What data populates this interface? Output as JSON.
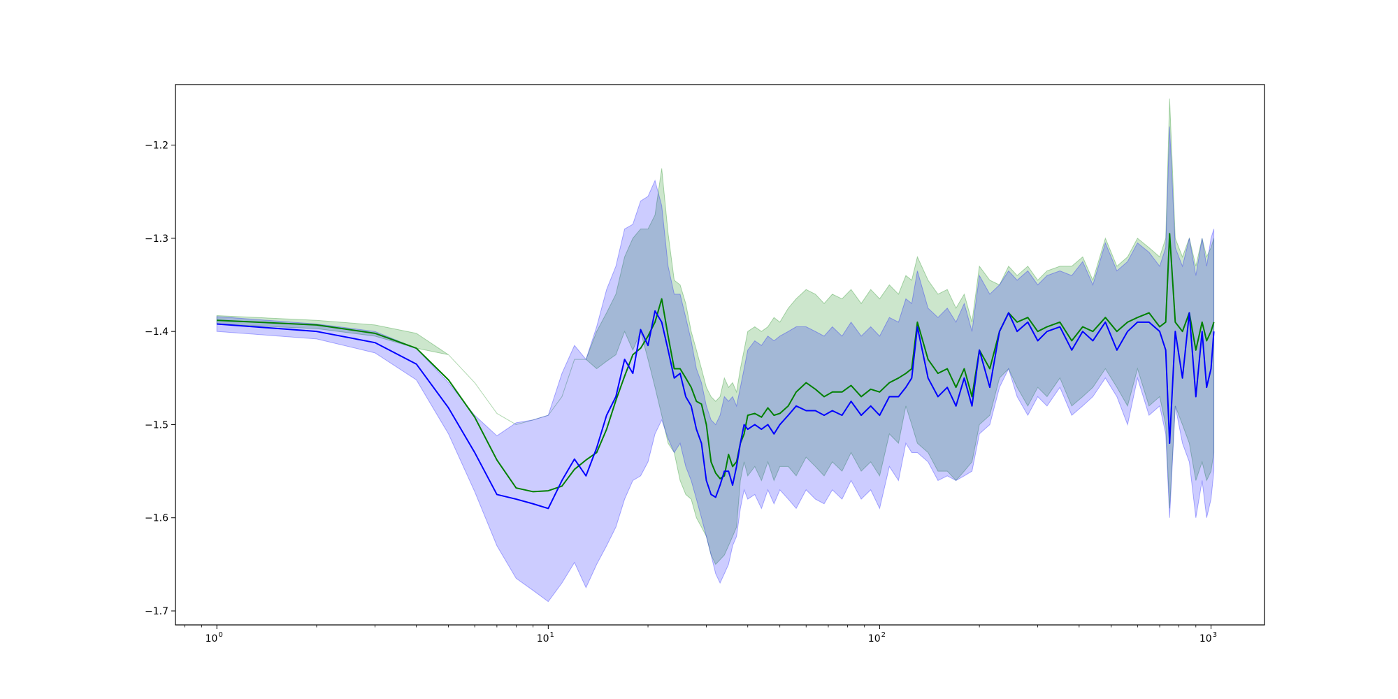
{
  "chart_data": {
    "type": "line",
    "title": "",
    "xlabel": "",
    "ylabel": "",
    "xscale": "log",
    "xlim": [
      0.75,
      1450
    ],
    "ylim": [
      -1.715,
      -1.135
    ],
    "grid": false,
    "legend": "none",
    "x_ticks": [
      {
        "value": 1,
        "base": "10",
        "exp": "0"
      },
      {
        "value": 10,
        "base": "10",
        "exp": "1"
      },
      {
        "value": 100,
        "base": "10",
        "exp": "2"
      },
      {
        "value": 1000,
        "base": "10",
        "exp": "3"
      }
    ],
    "y_ticks": [
      {
        "value": -1.2,
        "label": "−1.2"
      },
      {
        "value": -1.3,
        "label": "−1.3"
      },
      {
        "value": -1.4,
        "label": "−1.4"
      },
      {
        "value": -1.5,
        "label": "−1.5"
      },
      {
        "value": -1.6,
        "label": "−1.6"
      },
      {
        "value": -1.7,
        "label": "−1.7"
      }
    ],
    "series": [
      {
        "color": "#008000",
        "band_color": "#008000",
        "band_opacity": 0.2,
        "line_width": 2,
        "x": [
          1,
          2,
          3,
          4,
          5,
          6,
          7,
          8,
          9,
          10,
          11,
          12,
          13,
          14,
          15,
          16,
          17,
          18,
          19,
          20,
          21,
          22,
          23,
          24,
          25,
          26,
          27,
          28,
          29,
          30,
          31,
          32,
          33,
          34,
          35,
          36,
          37,
          38,
          39,
          40,
          42,
          44,
          46,
          48,
          50,
          53,
          56,
          60,
          64,
          68,
          72,
          77,
          82,
          88,
          94,
          100,
          107,
          114,
          120,
          125,
          130,
          140,
          150,
          160,
          170,
          180,
          190,
          200,
          215,
          230,
          245,
          260,
          280,
          300,
          320,
          350,
          380,
          410,
          440,
          480,
          520,
          560,
          600,
          650,
          700,
          730,
          750,
          780,
          820,
          860,
          900,
          940,
          970,
          1000,
          1020
        ],
        "y": [
          -1.388,
          -1.393,
          -1.402,
          -1.418,
          -1.452,
          -1.492,
          -1.538,
          -1.568,
          -1.572,
          -1.571,
          -1.566,
          -1.548,
          -1.538,
          -1.53,
          -1.505,
          -1.474,
          -1.448,
          -1.425,
          -1.418,
          -1.405,
          -1.39,
          -1.365,
          -1.405,
          -1.44,
          -1.44,
          -1.45,
          -1.46,
          -1.475,
          -1.478,
          -1.5,
          -1.54,
          -1.552,
          -1.558,
          -1.555,
          -1.532,
          -1.545,
          -1.54,
          -1.52,
          -1.51,
          -1.49,
          -1.488,
          -1.492,
          -1.482,
          -1.49,
          -1.488,
          -1.48,
          -1.465,
          -1.455,
          -1.462,
          -1.47,
          -1.465,
          -1.465,
          -1.458,
          -1.47,
          -1.462,
          -1.465,
          -1.455,
          -1.45,
          -1.445,
          -1.44,
          -1.39,
          -1.43,
          -1.445,
          -1.44,
          -1.46,
          -1.44,
          -1.47,
          -1.42,
          -1.44,
          -1.4,
          -1.38,
          -1.39,
          -1.385,
          -1.4,
          -1.395,
          -1.39,
          -1.41,
          -1.395,
          -1.4,
          -1.385,
          -1.4,
          -1.39,
          -1.385,
          -1.38,
          -1.395,
          -1.39,
          -1.295,
          -1.39,
          -1.4,
          -1.38,
          -1.42,
          -1.39,
          -1.41,
          -1.4,
          -1.39
        ],
        "lower": [
          -1.392,
          -1.397,
          -1.405,
          -1.418,
          -1.425,
          -1.455,
          -1.488,
          -1.5,
          -1.495,
          -1.49,
          -1.47,
          -1.43,
          -1.43,
          -1.44,
          -1.432,
          -1.425,
          -1.4,
          -1.42,
          -1.4,
          -1.43,
          -1.46,
          -1.49,
          -1.52,
          -1.53,
          -1.56,
          -1.575,
          -1.58,
          -1.6,
          -1.61,
          -1.62,
          -1.64,
          -1.65,
          -1.645,
          -1.64,
          -1.63,
          -1.62,
          -1.61,
          -1.56,
          -1.54,
          -1.555,
          -1.545,
          -1.56,
          -1.54,
          -1.56,
          -1.545,
          -1.545,
          -1.555,
          -1.535,
          -1.545,
          -1.555,
          -1.54,
          -1.55,
          -1.53,
          -1.55,
          -1.54,
          -1.555,
          -1.51,
          -1.52,
          -1.48,
          -1.5,
          -1.52,
          -1.53,
          -1.55,
          -1.55,
          -1.56,
          -1.55,
          -1.54,
          -1.5,
          -1.49,
          -1.45,
          -1.44,
          -1.46,
          -1.48,
          -1.46,
          -1.47,
          -1.45,
          -1.48,
          -1.47,
          -1.46,
          -1.44,
          -1.46,
          -1.48,
          -1.44,
          -1.48,
          -1.47,
          -1.5,
          -1.59,
          -1.48,
          -1.5,
          -1.52,
          -1.56,
          -1.54,
          -1.56,
          -1.55,
          -1.53
        ],
        "upper": [
          -1.383,
          -1.388,
          -1.393,
          -1.402,
          -1.425,
          -1.455,
          -1.488,
          -1.5,
          -1.495,
          -1.49,
          -1.47,
          -1.43,
          -1.43,
          -1.4,
          -1.38,
          -1.36,
          -1.32,
          -1.3,
          -1.29,
          -1.29,
          -1.275,
          -1.225,
          -1.295,
          -1.345,
          -1.35,
          -1.37,
          -1.4,
          -1.42,
          -1.44,
          -1.46,
          -1.47,
          -1.475,
          -1.47,
          -1.45,
          -1.46,
          -1.455,
          -1.465,
          -1.44,
          -1.42,
          -1.4,
          -1.395,
          -1.4,
          -1.395,
          -1.385,
          -1.39,
          -1.375,
          -1.365,
          -1.355,
          -1.36,
          -1.37,
          -1.36,
          -1.365,
          -1.355,
          -1.37,
          -1.355,
          -1.365,
          -1.35,
          -1.36,
          -1.34,
          -1.345,
          -1.32,
          -1.345,
          -1.36,
          -1.355,
          -1.375,
          -1.36,
          -1.39,
          -1.33,
          -1.345,
          -1.35,
          -1.33,
          -1.34,
          -1.33,
          -1.345,
          -1.335,
          -1.33,
          -1.33,
          -1.32,
          -1.345,
          -1.3,
          -1.33,
          -1.32,
          -1.3,
          -1.31,
          -1.32,
          -1.3,
          -1.15,
          -1.3,
          -1.32,
          -1.3,
          -1.33,
          -1.3,
          -1.32,
          -1.31,
          -1.3
        ]
      },
      {
        "color": "#0000ff",
        "band_color": "#0000ff",
        "band_opacity": 0.2,
        "line_width": 2,
        "x": [
          1,
          2,
          3,
          4,
          5,
          6,
          7,
          8,
          9,
          10,
          11,
          12,
          13,
          14,
          15,
          16,
          17,
          18,
          19,
          20,
          21,
          22,
          23,
          24,
          25,
          26,
          27,
          28,
          29,
          30,
          31,
          32,
          33,
          34,
          35,
          36,
          37,
          38,
          39,
          40,
          42,
          44,
          46,
          48,
          50,
          53,
          56,
          60,
          64,
          68,
          72,
          77,
          82,
          88,
          94,
          100,
          107,
          114,
          120,
          125,
          130,
          140,
          150,
          160,
          170,
          180,
          190,
          200,
          215,
          230,
          245,
          260,
          280,
          300,
          320,
          350,
          380,
          410,
          440,
          480,
          520,
          560,
          600,
          650,
          700,
          730,
          750,
          780,
          820,
          860,
          900,
          940,
          970,
          1000,
          1020
        ],
        "y": [
          -1.392,
          -1.4,
          -1.412,
          -1.435,
          -1.482,
          -1.53,
          -1.575,
          -1.58,
          -1.585,
          -1.59,
          -1.56,
          -1.537,
          -1.555,
          -1.525,
          -1.49,
          -1.47,
          -1.43,
          -1.445,
          -1.398,
          -1.415,
          -1.378,
          -1.39,
          -1.42,
          -1.45,
          -1.445,
          -1.47,
          -1.48,
          -1.505,
          -1.52,
          -1.56,
          -1.575,
          -1.578,
          -1.565,
          -1.55,
          -1.55,
          -1.565,
          -1.545,
          -1.52,
          -1.5,
          -1.505,
          -1.5,
          -1.505,
          -1.5,
          -1.51,
          -1.5,
          -1.49,
          -1.48,
          -1.485,
          -1.485,
          -1.49,
          -1.485,
          -1.49,
          -1.475,
          -1.49,
          -1.48,
          -1.49,
          -1.47,
          -1.47,
          -1.46,
          -1.45,
          -1.395,
          -1.45,
          -1.47,
          -1.46,
          -1.48,
          -1.45,
          -1.48,
          -1.42,
          -1.46,
          -1.4,
          -1.38,
          -1.4,
          -1.39,
          -1.41,
          -1.4,
          -1.395,
          -1.42,
          -1.4,
          -1.41,
          -1.39,
          -1.42,
          -1.4,
          -1.39,
          -1.39,
          -1.4,
          -1.42,
          -1.52,
          -1.4,
          -1.45,
          -1.38,
          -1.47,
          -1.4,
          -1.46,
          -1.44,
          -1.4
        ],
        "lower": [
          -1.4,
          -1.408,
          -1.423,
          -1.452,
          -1.51,
          -1.572,
          -1.63,
          -1.665,
          -1.678,
          -1.69,
          -1.67,
          -1.648,
          -1.675,
          -1.65,
          -1.63,
          -1.61,
          -1.58,
          -1.56,
          -1.555,
          -1.54,
          -1.51,
          -1.495,
          -1.515,
          -1.53,
          -1.52,
          -1.545,
          -1.56,
          -1.58,
          -1.6,
          -1.62,
          -1.64,
          -1.66,
          -1.67,
          -1.66,
          -1.65,
          -1.63,
          -1.62,
          -1.59,
          -1.57,
          -1.58,
          -1.575,
          -1.59,
          -1.57,
          -1.585,
          -1.57,
          -1.58,
          -1.59,
          -1.57,
          -1.58,
          -1.585,
          -1.57,
          -1.58,
          -1.56,
          -1.58,
          -1.57,
          -1.59,
          -1.545,
          -1.56,
          -1.52,
          -1.53,
          -1.53,
          -1.54,
          -1.56,
          -1.555,
          -1.56,
          -1.555,
          -1.55,
          -1.51,
          -1.5,
          -1.46,
          -1.44,
          -1.47,
          -1.49,
          -1.47,
          -1.48,
          -1.46,
          -1.49,
          -1.48,
          -1.47,
          -1.45,
          -1.47,
          -1.5,
          -1.45,
          -1.49,
          -1.48,
          -1.51,
          -1.6,
          -1.48,
          -1.52,
          -1.54,
          -1.6,
          -1.56,
          -1.6,
          -1.58,
          -1.55
        ],
        "upper": [
          -1.384,
          -1.392,
          -1.4,
          -1.418,
          -1.455,
          -1.49,
          -1.512,
          -1.498,
          -1.495,
          -1.49,
          -1.445,
          -1.415,
          -1.43,
          -1.395,
          -1.355,
          -1.33,
          -1.29,
          -1.285,
          -1.26,
          -1.255,
          -1.238,
          -1.265,
          -1.33,
          -1.36,
          -1.36,
          -1.385,
          -1.41,
          -1.44,
          -1.455,
          -1.48,
          -1.495,
          -1.5,
          -1.49,
          -1.47,
          -1.475,
          -1.47,
          -1.48,
          -1.46,
          -1.44,
          -1.42,
          -1.41,
          -1.415,
          -1.405,
          -1.41,
          -1.405,
          -1.4,
          -1.395,
          -1.395,
          -1.4,
          -1.405,
          -1.395,
          -1.405,
          -1.39,
          -1.405,
          -1.395,
          -1.405,
          -1.385,
          -1.39,
          -1.365,
          -1.37,
          -1.335,
          -1.375,
          -1.385,
          -1.375,
          -1.39,
          -1.37,
          -1.4,
          -1.34,
          -1.36,
          -1.35,
          -1.335,
          -1.345,
          -1.335,
          -1.35,
          -1.34,
          -1.335,
          -1.34,
          -1.325,
          -1.35,
          -1.305,
          -1.335,
          -1.325,
          -1.305,
          -1.315,
          -1.33,
          -1.31,
          -1.18,
          -1.31,
          -1.33,
          -1.3,
          -1.34,
          -1.3,
          -1.33,
          -1.3,
          -1.29
        ]
      }
    ]
  }
}
